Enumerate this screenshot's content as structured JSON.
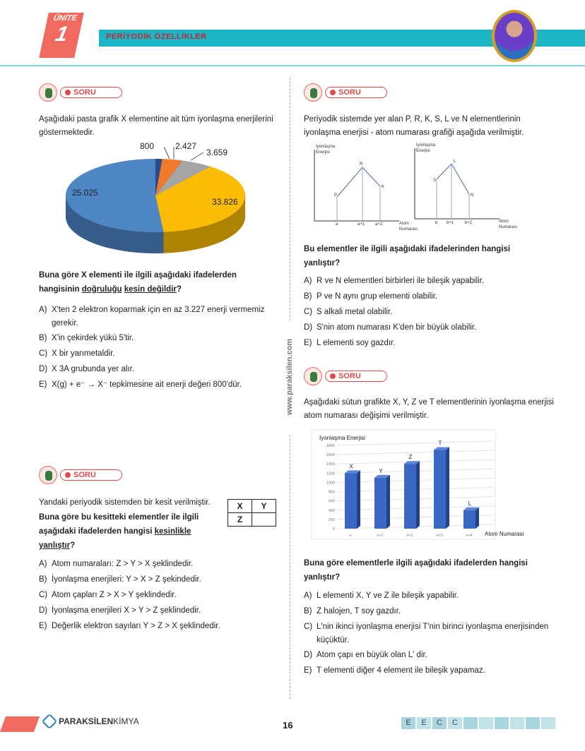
{
  "header": {
    "unit_label": "ÜNİTE",
    "unit_number": "1",
    "chapter": "PERİYODİK ÖZELLİKLER"
  },
  "soru_label": "SORU",
  "site": "www.paraksilen.com",
  "q1": {
    "intro": "Aşağıdaki pasta grafik X elementine ait tüm iyonlaşma enerjilerini göstermektedir.",
    "chart_data": {
      "type": "pie",
      "values": [
        800,
        2427,
        3659,
        25025,
        33826
      ],
      "labels": [
        "800",
        "2.427",
        "3.659",
        "25.025",
        "33.826"
      ],
      "colors": [
        "#2a4a8c",
        "#ee7a2a",
        "#a5a5a5",
        "#fbbc05",
        "#4f86c6"
      ]
    },
    "question_a": "Buna göre X elementi ile ilgili aşağıdaki ifadelerden hangisinin ",
    "question_u1": "doğruluğu",
    "question_sp": " ",
    "question_u2": "kesin değildir",
    "question_end": "?",
    "options": [
      {
        "k": "A)",
        "v": "X'ten 2 elektron koparmak için en az 3.227 enerji vermemiz gerekir."
      },
      {
        "k": "B)",
        "v": "X'in çekirdek yükü 5'tir."
      },
      {
        "k": "C)",
        "v": "X bir yarımetaldir."
      },
      {
        "k": "D)",
        "v": "X 3A grubunda yer alır."
      },
      {
        "k": "E)",
        "v": "X(g) + e⁻ → X⁻ tepkimesine ait enerji değeri 800'dür."
      }
    ]
  },
  "q2": {
    "intro": "Yandaki periyodik sistemden bir kesit verilmiştir.",
    "table": [
      [
        "X",
        "Y"
      ],
      [
        "Z",
        ""
      ]
    ],
    "question_a": "Buna göre bu kesitteki elementler ile ilgili aşağıdaki ifadelerden hangisi ",
    "question_u": "kesinlikle yanlıştır",
    "question_end": "?",
    "options": [
      {
        "k": "A)",
        "v": "Atom numaraları: Z > Y > X şeklindedir."
      },
      {
        "k": "B)",
        "v": "İyonlaşma enerjileri: Y > X > Z şekindedir."
      },
      {
        "k": "C)",
        "v": "Atom çapları Z > X > Y şeklindedir."
      },
      {
        "k": "D)",
        "v": "İyonlaşma enerjileri X > Y > Z şeklindedir."
      },
      {
        "k": "E)",
        "v": "Değerlik elektron sayıları Y > Z > X şeklindedir."
      }
    ]
  },
  "q3": {
    "intro": "Periyodik sistemde yer alan P, R, K, S, L ve N elementlerinin iyonlaşma enerjisi - atom numarası grafiği aşağıda verilmiştir.",
    "graph1": {
      "ylabel1": "İyonlaşma",
      "ylabel2": "Enerjisi",
      "xlabel1": "Atom",
      "xlabel2": "Numarası",
      "points": [
        "P",
        "R",
        "K"
      ],
      "ticks": [
        "a",
        "a+1",
        "a+2"
      ]
    },
    "graph2": {
      "ylabel1": "İyonlaşma",
      "ylabel2": "Enerjisi",
      "xlabel1": "Atom",
      "xlabel2": "Numarası",
      "points": [
        "S",
        "L",
        "N"
      ],
      "ticks": [
        "b",
        "b+1",
        "b+2"
      ]
    },
    "question": "Bu elementler ile ilgili aşağıdaki ifadelerinden hangisi yanlıştır?",
    "options": [
      {
        "k": "A)",
        "v": "R ve N elementleri birbirleri ile bileşik yapabilir."
      },
      {
        "k": "B)",
        "v": "P ve N aynı grup elementi olabilir."
      },
      {
        "k": "C)",
        "v": "S alkali metal olabilir."
      },
      {
        "k": "D)",
        "v": "S'nin atom numarası K'den bir büyük olabilir."
      },
      {
        "k": "E)",
        "v": "L elementi soy gazdır."
      }
    ]
  },
  "q4": {
    "intro": "Aşağıdaki sütun grafikte X, Y, Z ve T elementlerinin iyonlaşma enerjisi atom numarası değişimi verilmiştir.",
    "chart_data": {
      "type": "bar",
      "ylabel": "İyonlaşma Enerjisi",
      "xlabel": "Atom Numarası",
      "categories": [
        "n",
        "n+1",
        "n+2",
        "n+3",
        "n+4"
      ],
      "bar_labels": [
        "X",
        "Y",
        "Z",
        "T",
        "L"
      ],
      "values": [
        1200,
        1100,
        1400,
        1700,
        400
      ],
      "ylim": [
        0,
        1800
      ],
      "yticks": [
        "0",
        "200",
        "400",
        "600",
        "800",
        "1000",
        "1200",
        "1400",
        "1600",
        "1800"
      ],
      "grid": true,
      "color": "#3a66c4"
    },
    "question": "Buna göre elementlerle ilgili aşağıdaki ifadelerden hangisi yanlıştır?",
    "options": [
      {
        "k": "A)",
        "v": "L elementi X, Y ve Z ile bileşik yapabilir."
      },
      {
        "k": "B)",
        "v": "Z halojen, T soy gazdır."
      },
      {
        "k": "C)",
        "v": "L'nin ikinci iyonlaşma enerjisi T'nin birinci iyonlaşma enerjisinden küçüktür."
      },
      {
        "k": "D)",
        "v": "Atom çapı en büyük olan L' dir."
      },
      {
        "k": "E)",
        "v": "T elementi diğer 4 element ile bileşik yapamaz."
      }
    ]
  },
  "footer": {
    "brand_bold": "PARAKSİLEN",
    "brand_light": "KİMYA",
    "page": "16",
    "answers": [
      "E",
      "E",
      "C",
      "C",
      "",
      "",
      "",
      "",
      "",
      ""
    ]
  }
}
